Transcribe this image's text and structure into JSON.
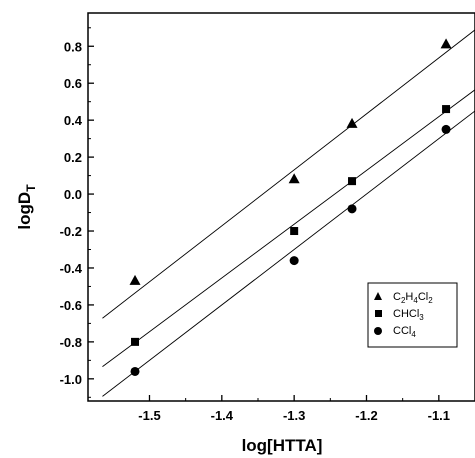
{
  "chart_data": {
    "type": "scatter",
    "xlabel": "log[HTTA]",
    "ylabel": "logD",
    "ylabel_sub": "T",
    "xlim": [
      -1.585,
      -1.05
    ],
    "ylim": [
      -1.12,
      0.98
    ],
    "x_ticks": [
      -1.5,
      -1.4,
      -1.3,
      -1.2,
      -1.1
    ],
    "x_tick_labels": [
      "-1.5",
      "-1.4",
      "-1.3",
      "-1.2",
      "-1.1"
    ],
    "y_ticks": [
      -1.0,
      -0.8,
      -0.6,
      -0.4,
      -0.2,
      0.0,
      0.2,
      0.4,
      0.6,
      0.8
    ],
    "y_tick_labels": [
      "-1.0",
      "-0.8",
      "-0.6",
      "-0.4",
      "-0.2",
      "0.0",
      "0.2",
      "0.4",
      "0.6",
      "0.8"
    ],
    "grid": false,
    "legend_position": "lower-right",
    "series": [
      {
        "name": "C2H4Cl2",
        "marker": "triangle",
        "x": [
          -1.52,
          -1.3,
          -1.22,
          -1.09
        ],
        "y": [
          -0.47,
          0.08,
          0.38,
          0.81
        ],
        "fit": {
          "slope": 3.03,
          "intercept": 4.07
        }
      },
      {
        "name": "CHCl3",
        "marker": "square",
        "x": [
          -1.52,
          -1.3,
          -1.22,
          -1.09
        ],
        "y": [
          -0.8,
          -0.2,
          0.07,
          0.46
        ],
        "fit": {
          "slope": 2.91,
          "intercept": 3.62
        }
      },
      {
        "name": "CCl4",
        "marker": "circle",
        "x": [
          -1.52,
          -1.3,
          -1.22,
          -1.09
        ],
        "y": [
          -0.96,
          -0.36,
          -0.08,
          0.35
        ],
        "fit": {
          "slope": 3.0,
          "intercept": 3.6
        }
      }
    ],
    "legend": [
      {
        "base": "C",
        "sub1": "2",
        "mid": "H",
        "sub2": "4",
        "tail": "Cl",
        "sub3": "2"
      },
      {
        "base": "CHCl",
        "sub1": "3"
      },
      {
        "base": "CCl",
        "sub1": "4"
      }
    ]
  }
}
